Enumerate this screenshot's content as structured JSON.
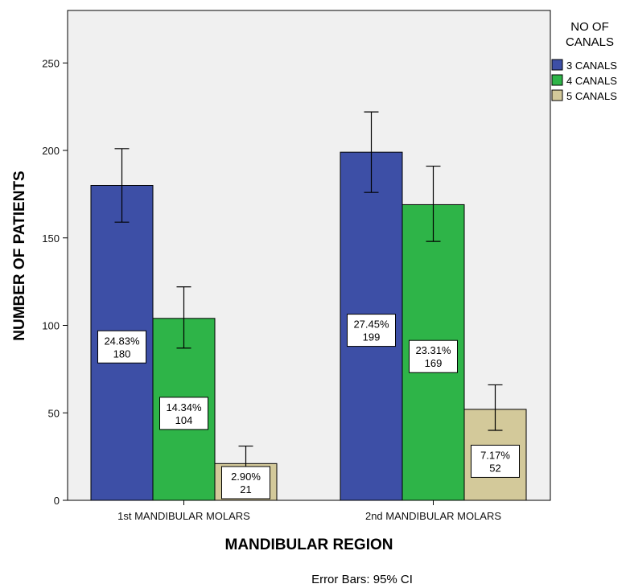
{
  "chart_data": {
    "type": "bar",
    "title": "",
    "xlabel": "MANDIBULAR REGION",
    "ylabel": "NUMBER OF PATIENTS",
    "categories": [
      "1st MANDIBULAR MOLARS",
      "2nd MANDIBULAR MOLARS"
    ],
    "ylim": [
      0,
      280
    ],
    "yticks": [
      0,
      50,
      100,
      150,
      200,
      250
    ],
    "legend_title": "NO OF CANALS",
    "legend_position": "right",
    "grid": false,
    "plot_background": "#f0f0f0",
    "series": [
      {
        "name": "3 CANALS",
        "color": "#3d4fa6",
        "values": [
          180,
          199
        ],
        "ci": [
          [
            159,
            201
          ],
          [
            176,
            222
          ]
        ],
        "labels": [
          [
            "24.83%",
            "180"
          ],
          [
            "27.45%",
            "199"
          ]
        ]
      },
      {
        "name": "4 CANALS",
        "color": "#2eb448",
        "values": [
          104,
          169
        ],
        "ci": [
          [
            87,
            122
          ],
          [
            148,
            191
          ]
        ],
        "labels": [
          [
            "14.34%",
            "104"
          ],
          [
            "23.31%",
            "169"
          ]
        ]
      },
      {
        "name": "5 CANALS",
        "color": "#d3c99a",
        "values": [
          21,
          52
        ],
        "ci": [
          [
            11,
            31
          ],
          [
            40,
            66
          ]
        ],
        "labels": [
          [
            "2.90%",
            "21"
          ],
          [
            "7.17%",
            "52"
          ]
        ]
      }
    ],
    "footnote": "Error Bars: 95% CI"
  }
}
